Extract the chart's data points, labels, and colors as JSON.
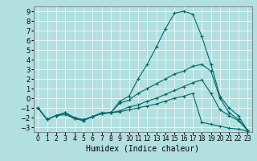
{
  "title": "",
  "xlabel": "Humidex (Indice chaleur)",
  "ylabel": "",
  "bg_color": "#b2dfdf",
  "grid_color": "#ffffff",
  "line_color": "#006868",
  "ylim": [
    -3.5,
    9.5
  ],
  "xlim": [
    -0.5,
    23.5
  ],
  "yticks": [
    -3,
    -2,
    -1,
    0,
    1,
    2,
    3,
    4,
    5,
    6,
    7,
    8,
    9
  ],
  "xticks": [
    0,
    1,
    2,
    3,
    4,
    5,
    6,
    7,
    8,
    9,
    10,
    11,
    12,
    13,
    14,
    15,
    16,
    17,
    18,
    19,
    20,
    21,
    22,
    23
  ],
  "line1_x": [
    0,
    1,
    2,
    3,
    4,
    5,
    6,
    7,
    8,
    9,
    10,
    11,
    12,
    13,
    14,
    15,
    16,
    17,
    18,
    19,
    20,
    21,
    22,
    23
  ],
  "line1_y": [
    -1.0,
    -2.2,
    -1.8,
    -1.5,
    -2.0,
    -2.2,
    -1.9,
    -1.5,
    -1.5,
    -0.3,
    0.2,
    2.0,
    3.5,
    5.3,
    7.2,
    8.8,
    9.0,
    8.7,
    6.4,
    3.5,
    0.2,
    -1.0,
    -1.8,
    -3.3
  ],
  "line2_x": [
    0,
    1,
    2,
    3,
    4,
    5,
    6,
    7,
    8,
    9,
    10,
    11,
    12,
    13,
    14,
    15,
    16,
    17,
    18,
    19,
    20,
    21,
    22,
    23
  ],
  "line2_y": [
    -1.0,
    -2.2,
    -1.8,
    -1.7,
    -2.1,
    -2.3,
    -1.9,
    -1.6,
    -1.5,
    -1.3,
    -0.9,
    -0.7,
    -0.3,
    0.0,
    0.4,
    0.8,
    1.2,
    1.6,
    1.9,
    0.5,
    -1.2,
    -1.8,
    -2.3,
    -3.3
  ],
  "line3_x": [
    0,
    1,
    2,
    3,
    4,
    5,
    6,
    7,
    8,
    9,
    10,
    11,
    12,
    13,
    14,
    15,
    16,
    17,
    18,
    19,
    20,
    21,
    22,
    23
  ],
  "line3_y": [
    -1.0,
    -2.2,
    -1.8,
    -1.5,
    -2.1,
    -2.3,
    -1.9,
    -1.6,
    -1.5,
    -0.5,
    -0.2,
    0.5,
    1.0,
    1.5,
    2.0,
    2.5,
    2.8,
    3.3,
    3.5,
    2.8,
    0.0,
    -1.5,
    -2.2,
    -3.3
  ],
  "line4_x": [
    0,
    1,
    2,
    3,
    4,
    5,
    6,
    7,
    8,
    9,
    10,
    11,
    12,
    13,
    14,
    15,
    16,
    17,
    18,
    19,
    20,
    21,
    22,
    23
  ],
  "line4_y": [
    -1.0,
    -2.2,
    -1.8,
    -1.5,
    -2.1,
    -2.3,
    -1.9,
    -1.6,
    -1.5,
    -1.4,
    -1.2,
    -1.0,
    -0.8,
    -0.6,
    -0.3,
    0.0,
    0.2,
    0.5,
    -2.5,
    -2.7,
    -2.9,
    -3.1,
    -3.2,
    -3.4
  ],
  "tick_fontsize": 6,
  "xlabel_fontsize": 7,
  "marker_size": 3,
  "linewidth": 0.8
}
